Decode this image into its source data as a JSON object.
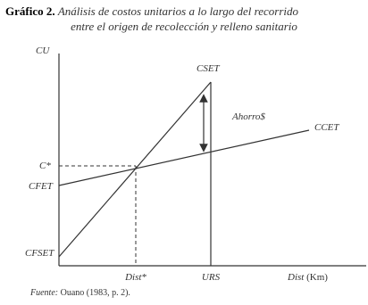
{
  "title": {
    "label": "Gráfico 2.",
    "line1": "Análisis de costos unitarios a lo largo del recorrido",
    "line2": "entre el origen de recolección y relleno sanitario"
  },
  "axes": {
    "y": "CU",
    "x_dist": "Dist",
    "x_unit": "(Km)"
  },
  "curves": {
    "cset": "CSET",
    "ccet": "CCET",
    "savings": "Ahorro$"
  },
  "points": {
    "c_star": "C*",
    "cfet": "CFET",
    "cfset": "CFSET",
    "dist_star": "Dist*",
    "urs": "URS"
  },
  "source": {
    "label": "Fuente:",
    "text": "Ouano (1983, p. 2)."
  }
}
